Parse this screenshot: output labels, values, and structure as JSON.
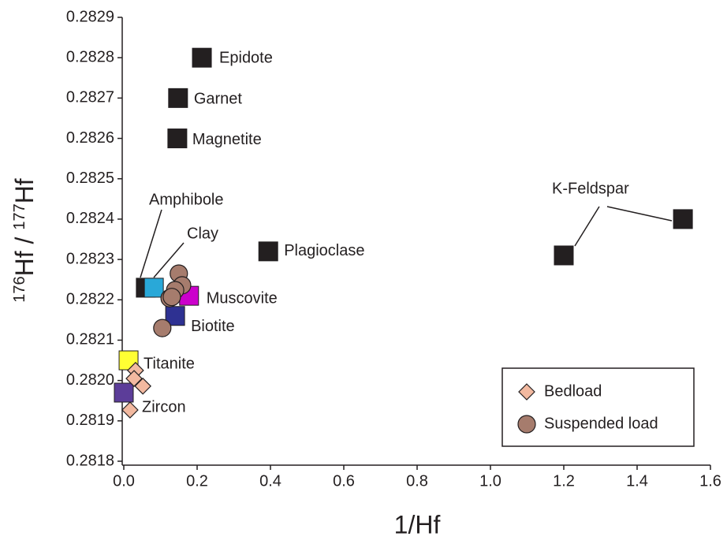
{
  "chart_data": {
    "type": "scatter",
    "x_label": "1/Hf",
    "y_label": [
      "176",
      "Hf / ",
      "177",
      "Hf"
    ],
    "xlim": [
      0,
      1.6
    ],
    "ylim": [
      0.2818,
      0.2829
    ],
    "xticks": [
      {
        "value": 0,
        "label": "0.0"
      },
      0.2,
      0.4,
      0.6,
      0.8,
      {
        "value": 1,
        "label": "1.0"
      },
      1.2,
      1.4,
      1.6
    ],
    "yticks": [
      0.2818,
      0.2819,
      {
        "value": 0.282,
        "label": "0.2820"
      },
      0.2821,
      0.2822,
      0.2823,
      0.2824,
      0.2825,
      0.2826,
      0.2827,
      0.2828,
      0.2829
    ],
    "minerals": [
      {
        "label": "Epidote",
        "color": "#231f20",
        "x": [
          0.213
        ],
        "y": [
          0.2828
        ]
      },
      {
        "label": "Garnet",
        "color": "#231f20",
        "x": [
          0.148
        ],
        "y": [
          0.2827
        ]
      },
      {
        "label": "Magnetite",
        "color": "#231f20",
        "x": [
          0.146
        ],
        "y": [
          0.2826
        ]
      },
      {
        "label": "Plagioclase",
        "color": "#231f20",
        "x": [
          0.394
        ],
        "y": [
          0.28232
        ]
      },
      {
        "label": "K-Feldspar",
        "color": "#231f20",
        "x": [
          1.2,
          1.525
        ],
        "y": [
          0.28231,
          0.2824
        ]
      },
      {
        "label": "Amphibole",
        "color": "#231f20",
        "x": [
          0.06
        ],
        "y": [
          0.28223
        ]
      },
      {
        "label": "Clay",
        "color": "#29a8d8",
        "x": [
          0.082
        ],
        "y": [
          0.28223
        ]
      },
      {
        "label": "Muscovite",
        "color": "#cc00cc",
        "x": [
          0.178
        ],
        "y": [
          0.28221
        ]
      },
      {
        "label": "Biotite",
        "color": "#2e3192",
        "x": [
          0.14
        ],
        "y": [
          0.28216
        ]
      },
      {
        "label": "Titanite",
        "color": "#ffff33",
        "x": [
          0.013
        ],
        "y": [
          0.28205
        ]
      },
      {
        "label": "Zircon",
        "color": "#5c3d99",
        "x": [
          0.0
        ],
        "y": [
          0.28197
        ]
      }
    ],
    "series": [
      {
        "name": "Bedload",
        "color": "#f2b9a0",
        "x": [
          0.032,
          0.028,
          0.052,
          0.017
        ],
        "values": [
          0.282025,
          0.282005,
          0.281986,
          0.281927
        ]
      },
      {
        "name": "Suspended load",
        "color": "#a67c6d",
        "x": [
          0.15,
          0.159,
          0.14,
          0.125,
          0.131,
          0.105
        ],
        "values": [
          0.282265,
          0.282236,
          0.282224,
          0.282204,
          0.282207,
          0.28213
        ]
      }
    ]
  }
}
